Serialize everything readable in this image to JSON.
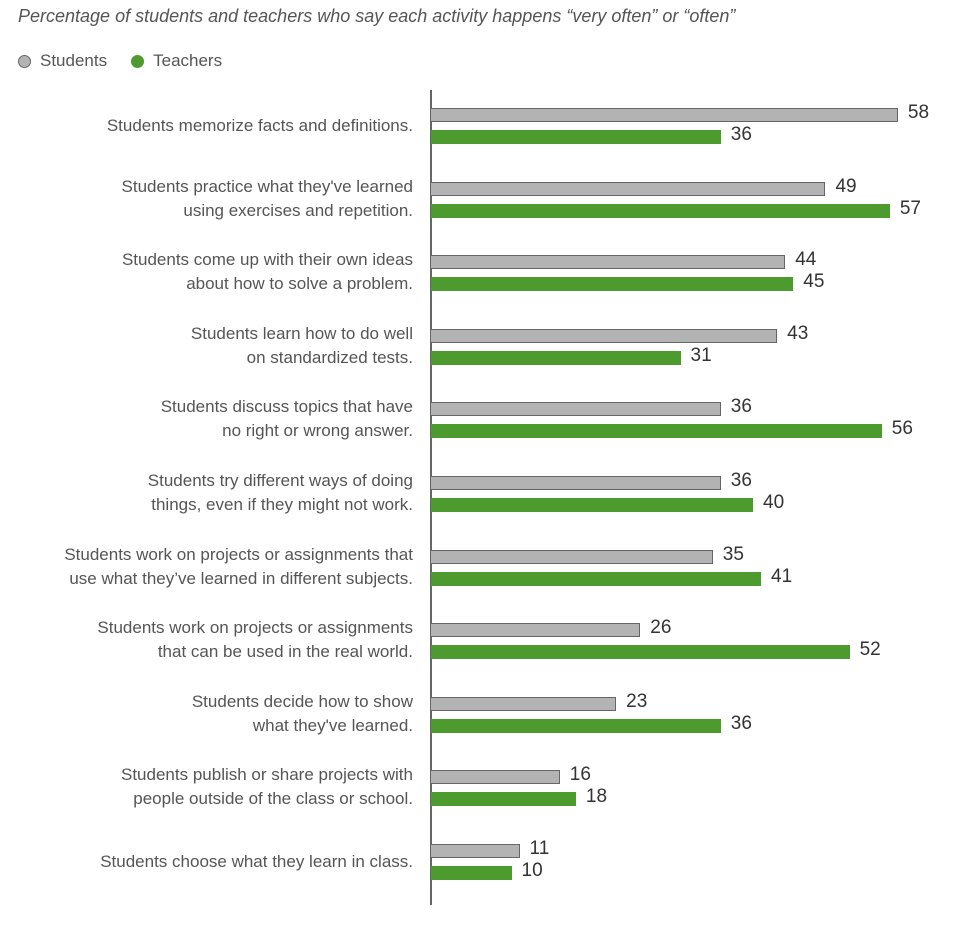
{
  "chart_data": {
    "type": "bar",
    "orientation": "horizontal",
    "title": "Percentage of students and teachers who say each activity happens “very often” or “often”",
    "xlabel": "",
    "ylabel": "",
    "xlim": [
      0,
      60
    ],
    "grid": false,
    "legend_position": "top-left",
    "legend": [
      "Students",
      "Teachers"
    ],
    "colors": {
      "Students": "#b3b3b3",
      "Teachers": "#4d9a2e"
    },
    "categories": [
      [
        "Students memorize facts and definitions."
      ],
      [
        "Students practice what they've learned",
        "using exercises and repetition."
      ],
      [
        "Students come up with their own ideas",
        "about how to solve a problem."
      ],
      [
        "Students learn how to do well",
        "on standardized tests."
      ],
      [
        "Students discuss topics that have",
        "no right or wrong answer."
      ],
      [
        "Students try different ways of doing",
        "things, even if they might not work."
      ],
      [
        "Students work on projects or assignments that",
        "use what they’ve learned in different subjects."
      ],
      [
        "Students work on projects or assignments",
        "that can be used in the real world."
      ],
      [
        "Students decide how to show",
        "what they've learned."
      ],
      [
        "Students publish or share projects with",
        "people outside of the class or school."
      ],
      [
        "Students choose what they learn in class."
      ]
    ],
    "series": [
      {
        "name": "Students",
        "values": [
          58,
          49,
          44,
          43,
          36,
          36,
          35,
          26,
          23,
          16,
          11
        ]
      },
      {
        "name": "Teachers",
        "values": [
          36,
          57,
          45,
          31,
          56,
          40,
          41,
          52,
          36,
          18,
          10
        ]
      }
    ]
  },
  "title": "Percentage of students and teachers who say each activity happens “very often” or “often”",
  "legend": {
    "students": "Students",
    "teachers": "Teachers"
  }
}
